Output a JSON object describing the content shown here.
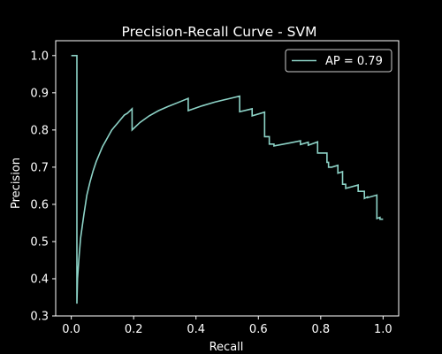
{
  "chart_data": {
    "type": "line",
    "title": "Precision-Recall Curve - SVM",
    "xlabel": "Recall",
    "ylabel": "Precision",
    "xlim": [
      -0.05,
      1.05
    ],
    "ylim": [
      0.3,
      1.04
    ],
    "xticks": [
      0.0,
      0.2,
      0.4,
      0.6,
      0.8,
      1.0
    ],
    "xtick_labels": [
      "0.0",
      "0.2",
      "0.4",
      "0.6",
      "0.8",
      "1.0"
    ],
    "yticks": [
      0.3,
      0.4,
      0.5,
      0.6,
      0.7,
      0.8,
      0.9,
      1.0
    ],
    "ytick_labels": [
      "0.3",
      "0.4",
      "0.5",
      "0.6",
      "0.7",
      "0.8",
      "0.9",
      "1.0"
    ],
    "grid": false,
    "legend": {
      "position": "upper right",
      "entries": [
        "AP = 0.79"
      ]
    },
    "colors": {
      "background": "#000000",
      "foreground": "#ffffff",
      "series": "#8dd3c7",
      "legend_border": "#cccccc"
    },
    "series": [
      {
        "name": "AP = 0.79",
        "x": [
          0.0,
          0.018,
          0.018,
          0.018,
          0.02,
          0.025,
          0.03,
          0.04,
          0.05,
          0.06,
          0.07,
          0.08,
          0.09,
          0.1,
          0.11,
          0.12,
          0.13,
          0.14,
          0.15,
          0.16,
          0.17,
          0.18,
          0.195,
          0.195,
          0.22,
          0.25,
          0.28,
          0.31,
          0.34,
          0.375,
          0.375,
          0.42,
          0.46,
          0.5,
          0.54,
          0.54,
          0.58,
          0.58,
          0.62,
          0.62,
          0.635,
          0.635,
          0.65,
          0.65,
          0.7,
          0.735,
          0.735,
          0.76,
          0.76,
          0.79,
          0.79,
          0.82,
          0.82,
          0.825,
          0.825,
          0.835,
          0.835,
          0.855,
          0.855,
          0.87,
          0.87,
          0.88,
          0.88,
          0.92,
          0.92,
          0.94,
          0.94,
          0.95,
          0.95,
          0.98,
          0.98,
          0.98,
          0.99,
          0.99,
          1.0
        ],
        "y": [
          1.0,
          1.0,
          0.56,
          0.333,
          0.4,
          0.46,
          0.51,
          0.57,
          0.625,
          0.66,
          0.69,
          0.715,
          0.735,
          0.755,
          0.77,
          0.785,
          0.8,
          0.81,
          0.82,
          0.83,
          0.84,
          0.845,
          0.857,
          0.8,
          0.82,
          0.838,
          0.852,
          0.863,
          0.873,
          0.885,
          0.852,
          0.865,
          0.875,
          0.883,
          0.891,
          0.849,
          0.857,
          0.838,
          0.848,
          0.782,
          0.782,
          0.762,
          0.762,
          0.757,
          0.765,
          0.771,
          0.761,
          0.767,
          0.759,
          0.768,
          0.738,
          0.738,
          0.713,
          0.713,
          0.7,
          0.7,
          0.7,
          0.705,
          0.684,
          0.688,
          0.654,
          0.654,
          0.643,
          0.652,
          0.635,
          0.635,
          0.616,
          0.62,
          0.618,
          0.625,
          0.562,
          0.562,
          0.565,
          0.56,
          0.56
        ]
      }
    ]
  }
}
